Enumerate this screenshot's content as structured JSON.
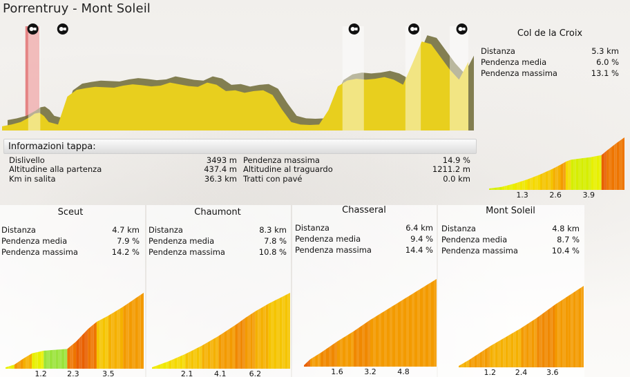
{
  "title": "Porrentruy - Mont Soleil",
  "info": {
    "header": "Informazioni tappa:",
    "left": [
      {
        "label": "Dislivello",
        "value": "3493 m"
      },
      {
        "label": "Altitudine alla partenza",
        "value": "437.4 m"
      },
      {
        "label": "Km in salita",
        "value": "36.3 km"
      }
    ],
    "right": [
      {
        "label": "Pendenza massima",
        "value": "14.9 %"
      },
      {
        "label": "Altitudine al traguardo",
        "value": "1211.2 m"
      },
      {
        "label": "Tratti con pavé",
        "value": "0.0 km"
      }
    ]
  },
  "colors": {
    "profile": "#e8cf1e",
    "climb_band": "#ffffff",
    "sprint_band": "#e06060",
    "grade_low": "#e6f000",
    "grade_mid": "#f5b400",
    "grade_high": "#f07000",
    "grade_green": "#99dd33"
  },
  "icons": [
    "climb-marker-icon",
    "climb-marker-icon",
    "climb-marker-icon",
    "climb-marker-icon",
    "climb-marker-icon"
  ],
  "chart_data": [
    {
      "type": "area",
      "name": "stage-profile",
      "x": [
        0,
        2,
        4,
        6,
        7,
        8,
        9,
        10,
        12,
        14,
        16,
        18,
        20,
        22,
        24,
        26,
        28,
        30,
        32,
        34,
        36,
        38,
        40,
        42,
        44,
        46,
        48,
        50,
        52,
        54,
        56,
        58,
        60,
        62,
        64,
        66,
        68,
        70,
        72,
        74,
        76,
        78,
        80,
        82,
        84,
        86,
        88,
        90,
        92,
        94,
        96,
        98,
        100
      ],
      "y": [
        450,
        470,
        500,
        560,
        600,
        610,
        570,
        500,
        470,
        800,
        880,
        900,
        915,
        910,
        905,
        930,
        945,
        935,
        920,
        930,
        965,
        945,
        925,
        915,
        965,
        940,
        865,
        875,
        845,
        865,
        875,
        820,
        650,
        500,
        470,
        465,
        470,
        640,
        920,
        990,
        1010,
        1000,
        1010,
        1030,
        1000,
        940,
        1190,
        1450,
        1420,
        1270,
        1120,
        1000,
        1210
      ],
      "ylim": [
        400,
        1500
      ],
      "climb_bands": [
        [
          5.6,
          8.2
        ],
        [
          73,
          77.6
        ],
        [
          86.5,
          89.8
        ],
        [
          96,
          100
        ]
      ],
      "sprint_band": [
        5,
        8
      ],
      "marker_positions": [
        6.6,
        13,
        75.5,
        88.3,
        98.6
      ]
    },
    {
      "type": "bar",
      "name": "Col de la Croix",
      "title": "Col de la Croix",
      "stats": [
        {
          "label": "Distanza",
          "value": "5.3 km"
        },
        {
          "label": "Pendenza media",
          "value": "6.0 %"
        },
        {
          "label": "Pendenza massima",
          "value": "13.1 %"
        }
      ],
      "x_ticks": [
        "1.3",
        "2.6",
        "3.9"
      ],
      "x_tick_values": [
        1.3,
        2.6,
        3.9
      ],
      "distance": 5.3,
      "segments": [
        {
          "end": 0.5,
          "grade": 2
        },
        {
          "end": 1.0,
          "grade": 4
        },
        {
          "end": 1.5,
          "grade": 5
        },
        {
          "end": 2.0,
          "grade": 6
        },
        {
          "end": 2.5,
          "grade": 7
        },
        {
          "end": 2.8,
          "grade": 8
        },
        {
          "end": 3.0,
          "grade": 9
        },
        {
          "end": 3.2,
          "grade": 6
        },
        {
          "end": 3.6,
          "grade": 2
        },
        {
          "end": 4.0,
          "grade": 2
        },
        {
          "end": 4.4,
          "grade": 3
        },
        {
          "end": 4.6,
          "grade": 13
        },
        {
          "end": 5.0,
          "grade": 12
        },
        {
          "end": 5.3,
          "grade": 11
        }
      ]
    },
    {
      "type": "bar",
      "name": "Sceut",
      "title": "Sceut",
      "stats": [
        {
          "label": "Distanza",
          "value": "4.7 km"
        },
        {
          "label": "Pendenza media",
          "value": "7.9 %"
        },
        {
          "label": "Pendenza massima",
          "value": "14.2 %"
        }
      ],
      "x_ticks": [
        "1.2",
        "2.3",
        "3.5"
      ],
      "x_tick_values": [
        1.2,
        2.3,
        3.5
      ],
      "distance": 4.7,
      "segments": [
        {
          "end": 0.3,
          "grade": 4
        },
        {
          "end": 0.6,
          "grade": 9
        },
        {
          "end": 0.9,
          "grade": 8
        },
        {
          "end": 1.3,
          "grade": 3
        },
        {
          "end": 1.7,
          "grade": 1
        },
        {
          "end": 2.1,
          "grade": 1
        },
        {
          "end": 2.4,
          "grade": 11
        },
        {
          "end": 2.8,
          "grade": 14
        },
        {
          "end": 3.1,
          "grade": 11
        },
        {
          "end": 3.5,
          "grade": 7
        },
        {
          "end": 4.0,
          "grade": 8
        },
        {
          "end": 4.7,
          "grade": 9
        }
      ]
    },
    {
      "type": "bar",
      "name": "Chaumont",
      "title": "Chaumont",
      "stats": [
        {
          "label": "Distanza",
          "value": "8.3 km"
        },
        {
          "label": "Pendenza media",
          "value": "7.8 %"
        },
        {
          "label": "Pendenza massima",
          "value": "10.8 %"
        }
      ],
      "x_ticks": [
        "2.1",
        "4.1",
        "6.2"
      ],
      "x_tick_values": [
        2.1,
        4.1,
        6.2
      ],
      "distance": 8.3,
      "segments": [
        {
          "end": 1.0,
          "grade": 5
        },
        {
          "end": 2.0,
          "grade": 6
        },
        {
          "end": 3.0,
          "grade": 7
        },
        {
          "end": 4.0,
          "grade": 8
        },
        {
          "end": 5.0,
          "grade": 9
        },
        {
          "end": 5.6,
          "grade": 10
        },
        {
          "end": 6.2,
          "grade": 9
        },
        {
          "end": 7.0,
          "grade": 8
        },
        {
          "end": 8.3,
          "grade": 7
        }
      ]
    },
    {
      "type": "bar",
      "name": "Chasseral",
      "title": "Chasseral",
      "stats": [
        {
          "label": "Distanza",
          "value": "6.4 km"
        },
        {
          "label": "Pendenza media",
          "value": "9.4 %"
        },
        {
          "label": "Pendenza massima",
          "value": "14.4 %"
        }
      ],
      "x_ticks": [
        "1.6",
        "3.2",
        "4.8"
      ],
      "x_tick_values": [
        1.6,
        3.2,
        4.8
      ],
      "distance": 6.4,
      "segments": [
        {
          "end": 0.3,
          "grade": 14
        },
        {
          "end": 0.8,
          "grade": 9
        },
        {
          "end": 1.6,
          "grade": 10
        },
        {
          "end": 2.4,
          "grade": 9
        },
        {
          "end": 3.2,
          "grade": 10
        },
        {
          "end": 4.0,
          "grade": 9
        },
        {
          "end": 4.8,
          "grade": 9
        },
        {
          "end": 5.6,
          "grade": 9
        },
        {
          "end": 6.4,
          "grade": 9
        }
      ]
    },
    {
      "type": "bar",
      "name": "Mont Soleil",
      "title": "Mont Soleil",
      "stats": [
        {
          "label": "Distanza",
          "value": "4.8 km"
        },
        {
          "label": "Pendenza media",
          "value": "8.7 %"
        },
        {
          "label": "Pendenza massima",
          "value": "10.4 %"
        }
      ],
      "x_ticks": [
        "1.2",
        "2.4",
        "3.6"
      ],
      "x_tick_values": [
        1.2,
        2.4,
        3.6
      ],
      "distance": 4.8,
      "segments": [
        {
          "end": 0.4,
          "grade": 8
        },
        {
          "end": 0.8,
          "grade": 9
        },
        {
          "end": 1.2,
          "grade": 9
        },
        {
          "end": 1.8,
          "grade": 8
        },
        {
          "end": 2.4,
          "grade": 8
        },
        {
          "end": 3.0,
          "grade": 9
        },
        {
          "end": 3.4,
          "grade": 10
        },
        {
          "end": 3.7,
          "grade": 10
        },
        {
          "end": 4.2,
          "grade": 9
        },
        {
          "end": 4.8,
          "grade": 9
        }
      ]
    }
  ]
}
